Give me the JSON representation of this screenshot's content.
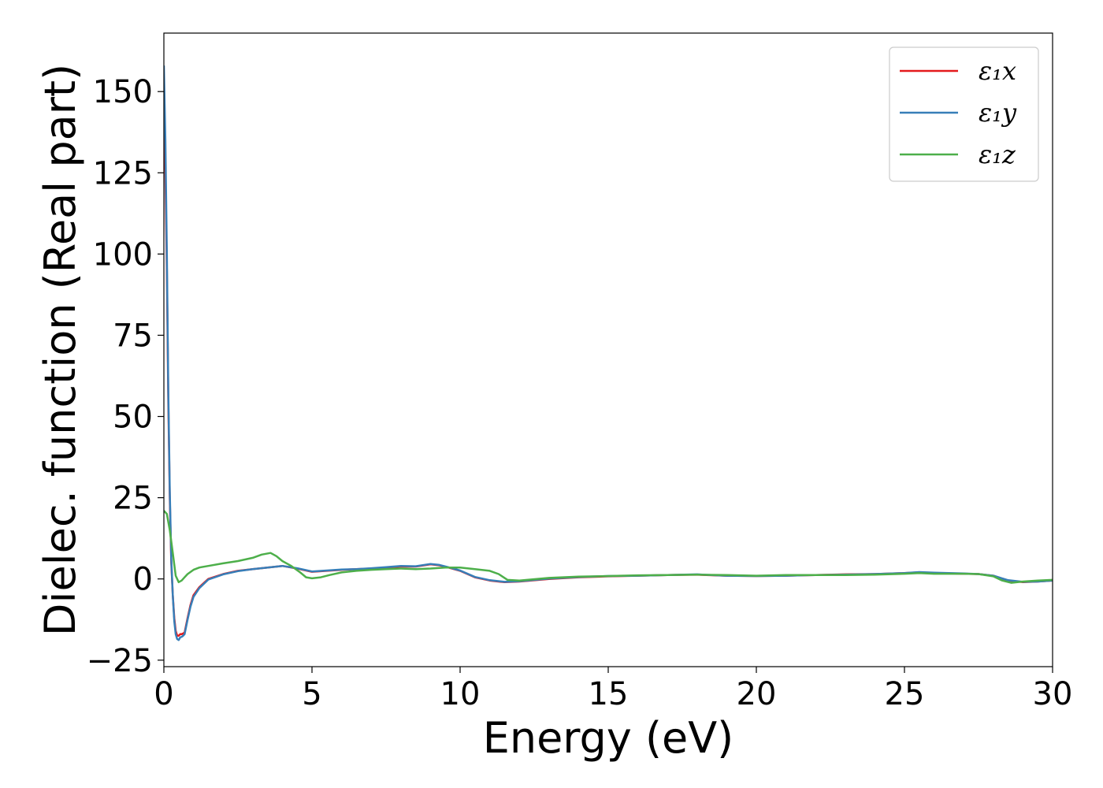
{
  "chart_data": {
    "type": "line",
    "title": "",
    "xlabel": "Energy (eV)",
    "ylabel": "Dielec. function (Real part)",
    "xlim": [
      0,
      30
    ],
    "ylim": [
      -27,
      168
    ],
    "xticks": [
      0,
      5,
      10,
      15,
      20,
      25,
      30
    ],
    "yticks": [
      -25,
      0,
      25,
      50,
      75,
      100,
      125,
      150
    ],
    "xtick_labels": [
      "0",
      "5",
      "10",
      "15",
      "20",
      "25",
      "30"
    ],
    "ytick_labels": [
      "−25",
      "0",
      "25",
      "50",
      "75",
      "100",
      "125",
      "150"
    ],
    "grid": false,
    "legend_position": "top-right",
    "series": [
      {
        "name": "ε₁x",
        "color": "#e41a1c",
        "x": [
          0,
          0.05,
          0.1,
          0.15,
          0.2,
          0.25,
          0.3,
          0.35,
          0.4,
          0.45,
          0.5,
          0.55,
          0.6,
          0.65,
          0.7,
          0.8,
          0.9,
          1.0,
          1.2,
          1.5,
          2.0,
          2.5,
          3.0,
          3.5,
          4.0,
          4.5,
          5.0,
          5.5,
          6.0,
          6.5,
          7.0,
          7.5,
          8.0,
          8.5,
          9.0,
          9.3,
          9.6,
          10.0,
          10.5,
          11.0,
          11.5,
          12.0,
          13.0,
          14.0,
          15.0,
          16.0,
          17.0,
          18.0,
          19.0,
          20.0,
          21.0,
          22.0,
          23.0,
          24.0,
          25.0,
          25.5,
          26.0,
          27.0,
          27.5,
          28.0,
          28.5,
          29.0,
          29.5,
          30.0
        ],
        "y": [
          140,
          125,
          95,
          55,
          25,
          5,
          -5,
          -12,
          -16,
          -17.5,
          -17.5,
          -17,
          -17,
          -16.8,
          -16.5,
          -12,
          -8,
          -5,
          -2.5,
          0,
          1.5,
          2.5,
          3.0,
          3.5,
          4.0,
          3.2,
          2.2,
          2.5,
          2.8,
          3.0,
          3.2,
          3.5,
          3.8,
          3.8,
          4.5,
          4.2,
          3.5,
          2.5,
          0.5,
          -0.5,
          -1.0,
          -0.8,
          0.0,
          0.5,
          0.8,
          1.0,
          1.2,
          1.3,
          1.0,
          0.9,
          1.0,
          1.2,
          1.4,
          1.5,
          1.8,
          2.0,
          1.8,
          1.6,
          1.5,
          1.0,
          -0.5,
          -1.0,
          -0.8,
          -0.5
        ]
      },
      {
        "name": "ε₁y",
        "color": "#377eb8",
        "x": [
          0,
          0.05,
          0.1,
          0.15,
          0.2,
          0.25,
          0.3,
          0.35,
          0.4,
          0.45,
          0.5,
          0.55,
          0.6,
          0.65,
          0.7,
          0.8,
          0.9,
          1.0,
          1.2,
          1.5,
          2.0,
          2.5,
          3.0,
          3.5,
          4.0,
          4.5,
          5.0,
          5.5,
          6.0,
          6.5,
          7.0,
          7.5,
          8.0,
          8.5,
          9.0,
          9.3,
          9.6,
          10.0,
          10.5,
          11.0,
          11.5,
          12.0,
          13.0,
          14.0,
          15.0,
          16.0,
          17.0,
          18.0,
          19.0,
          20.0,
          21.0,
          22.0,
          23.0,
          24.0,
          25.0,
          25.5,
          26.0,
          27.0,
          27.5,
          28.0,
          28.5,
          29.0,
          29.5,
          30.0
        ],
        "y": [
          158,
          135,
          100,
          58,
          27,
          6,
          -5,
          -13,
          -17,
          -18.5,
          -18.8,
          -18,
          -17.8,
          -17.5,
          -17,
          -12.5,
          -8.5,
          -5.5,
          -2.8,
          -0.2,
          1.4,
          2.4,
          3.0,
          3.5,
          4.0,
          3.3,
          2.3,
          2.6,
          2.9,
          3.0,
          3.3,
          3.6,
          4.0,
          3.9,
          4.6,
          4.3,
          3.6,
          2.6,
          0.6,
          -0.4,
          -0.9,
          -0.7,
          0.1,
          0.6,
          0.9,
          1.0,
          1.2,
          1.4,
          1.0,
          0.9,
          1.0,
          1.2,
          1.3,
          1.5,
          1.8,
          2.1,
          1.9,
          1.7,
          1.5,
          1.0,
          -0.4,
          -0.9,
          -0.8,
          -0.5
        ]
      },
      {
        "name": "ε₁z",
        "color": "#4daf4a",
        "x": [
          0,
          0.1,
          0.2,
          0.3,
          0.4,
          0.5,
          0.6,
          0.7,
          0.8,
          1.0,
          1.2,
          1.5,
          2.0,
          2.5,
          3.0,
          3.3,
          3.6,
          3.8,
          4.0,
          4.3,
          4.6,
          4.8,
          5.0,
          5.3,
          5.6,
          6.0,
          6.5,
          7.0,
          7.5,
          8.0,
          8.5,
          9.0,
          9.5,
          10.0,
          10.5,
          11.0,
          11.3,
          11.6,
          12.0,
          13.0,
          14.0,
          15.0,
          16.0,
          17.0,
          18.0,
          19.0,
          20.0,
          21.0,
          22.0,
          23.0,
          24.0,
          25.0,
          25.5,
          26.0,
          27.0,
          27.5,
          28.0,
          28.3,
          28.6,
          29.0,
          29.5,
          30.0
        ],
        "y": [
          21,
          20,
          15,
          8,
          1,
          -1,
          -0.5,
          0.5,
          1.5,
          2.8,
          3.5,
          4.0,
          4.8,
          5.5,
          6.5,
          7.5,
          8.0,
          7.0,
          5.5,
          4.0,
          2.0,
          0.5,
          0.2,
          0.5,
          1.2,
          2.0,
          2.5,
          2.8,
          3.0,
          3.2,
          3.0,
          3.2,
          3.5,
          3.5,
          3.0,
          2.5,
          1.5,
          -0.3,
          -0.5,
          0.3,
          0.7,
          0.9,
          1.1,
          1.2,
          1.3,
          1.2,
          1.0,
          1.2,
          1.2,
          1.2,
          1.3,
          1.6,
          1.8,
          1.6,
          1.6,
          1.5,
          0.8,
          -0.5,
          -1.2,
          -0.8,
          -0.5,
          -0.3
        ]
      }
    ]
  }
}
